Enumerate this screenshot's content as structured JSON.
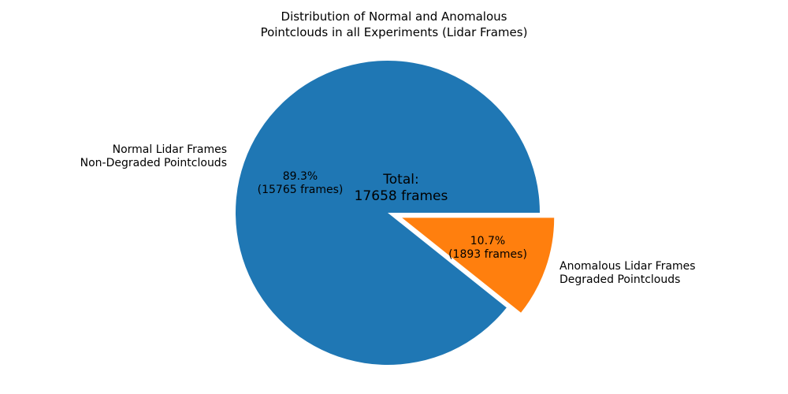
{
  "chart_data": {
    "type": "pie",
    "title": "Distribution of Normal and Anomalous Pointclouds in all Experiments (Lidar Frames)",
    "total": 17658,
    "center_annotation": "Total: 17658 frames",
    "start_angle": 0,
    "counterclock": true,
    "legend": "none",
    "background": "#ffffff",
    "slices": [
      {
        "name": "Normal Lidar Frames / Non-Degraded Pointclouds",
        "value": 15765,
        "percent": 89.3,
        "autopct": "89.3% (15765 frames)",
        "color": "#1f77b4",
        "explode": 0.0
      },
      {
        "name": "Anomalous Lidar Frames / Degraded Pointclouds",
        "value": 1893,
        "percent": 10.7,
        "autopct": "10.7% (1893 frames)",
        "color": "#ff7f0e",
        "explode": 0.1
      }
    ]
  },
  "title": {
    "line1": "Distribution of Normal and Anomalous",
    "line2": "Pointclouds in all Experiments (Lidar Frames)"
  },
  "left_label": {
    "line1": "Normal Lidar Frames",
    "line2": "Non-Degraded Pointclouds"
  },
  "right_label": {
    "line1": "Anomalous Lidar Frames",
    "line2": "Degraded Pointclouds"
  },
  "blue_pct": {
    "line1": "89.3%",
    "line2": "(15765 frames)"
  },
  "orange_pct": {
    "line1": "10.7%",
    "line2": "(1893 frames)"
  },
  "center_text": {
    "line1": "Total:",
    "line2": "17658 frames"
  }
}
